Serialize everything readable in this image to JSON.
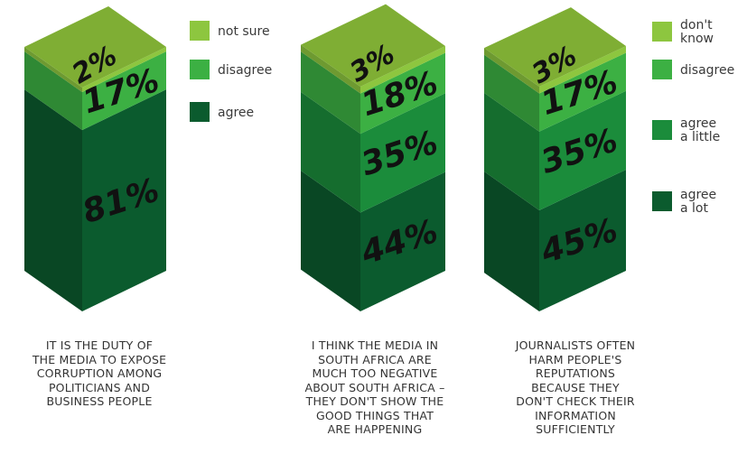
{
  "chart_data": [
    {
      "type": "stacked-bar-3d",
      "caption": [
        "IT IS THE DUTY OF",
        "THE MEDIA TO EXPOSE",
        "CORRUPTION AMONG",
        "POLITICIANS AND",
        "BUSINESS PEOPLE"
      ],
      "segments": [
        {
          "name": "agree",
          "value": 81,
          "label": "81%",
          "color": "#0b5b2e"
        },
        {
          "name": "disagree",
          "value": 17,
          "label": "17%",
          "color": "#3cb043"
        },
        {
          "name": "not sure",
          "value": 2,
          "label": "2%",
          "color": "#8dc63f"
        }
      ],
      "legend": [
        {
          "label": "not sure",
          "color": "#8dc63f"
        },
        {
          "label": "disagree",
          "color": "#3cb043"
        },
        {
          "label": "agree",
          "color": "#0b5b2e"
        }
      ]
    },
    {
      "type": "stacked-bar-3d",
      "caption": [
        "I THINK THE MEDIA IN",
        "SOUTH AFRICA ARE",
        "MUCH TOO NEGATIVE",
        "ABOUT SOUTH AFRICA –",
        "THEY DON'T SHOW THE",
        "GOOD THINGS THAT",
        "ARE HAPPENING"
      ],
      "segments": [
        {
          "name": "agree a lot",
          "value": 44,
          "label": "44%",
          "color": "#0b5b2e"
        },
        {
          "name": "agree a little",
          "value": 35,
          "label": "35%",
          "color": "#1b8c3b"
        },
        {
          "name": "disagree",
          "value": 18,
          "label": "18%",
          "color": "#3cb043"
        },
        {
          "name": "don't know",
          "value": 3,
          "label": "3%",
          "color": "#8dc63f"
        }
      ]
    },
    {
      "type": "stacked-bar-3d",
      "caption": [
        "JOURNALISTS OFTEN",
        "HARM PEOPLE'S",
        "REPUTATIONS",
        "BECAUSE THEY",
        "DON'T CHECK THEIR",
        "INFORMATION",
        "SUFFICIENTLY"
      ],
      "segments": [
        {
          "name": "agree a lot",
          "value": 45,
          "label": "45%",
          "color": "#0b5b2e"
        },
        {
          "name": "agree a little",
          "value": 35,
          "label": "35%",
          "color": "#1b8c3b"
        },
        {
          "name": "disagree",
          "value": 17,
          "label": "17%",
          "color": "#3cb043"
        },
        {
          "name": "don't know",
          "value": 3,
          "label": "3%",
          "color": "#8dc63f"
        }
      ],
      "legend": [
        {
          "label": "don't\nknow",
          "color": "#8dc63f"
        },
        {
          "label": "disagree",
          "color": "#3cb043"
        },
        {
          "label": "agree\na little",
          "color": "#1b8c3b"
        },
        {
          "label": "agree\na lot",
          "color": "#0b5b2e"
        }
      ]
    }
  ]
}
